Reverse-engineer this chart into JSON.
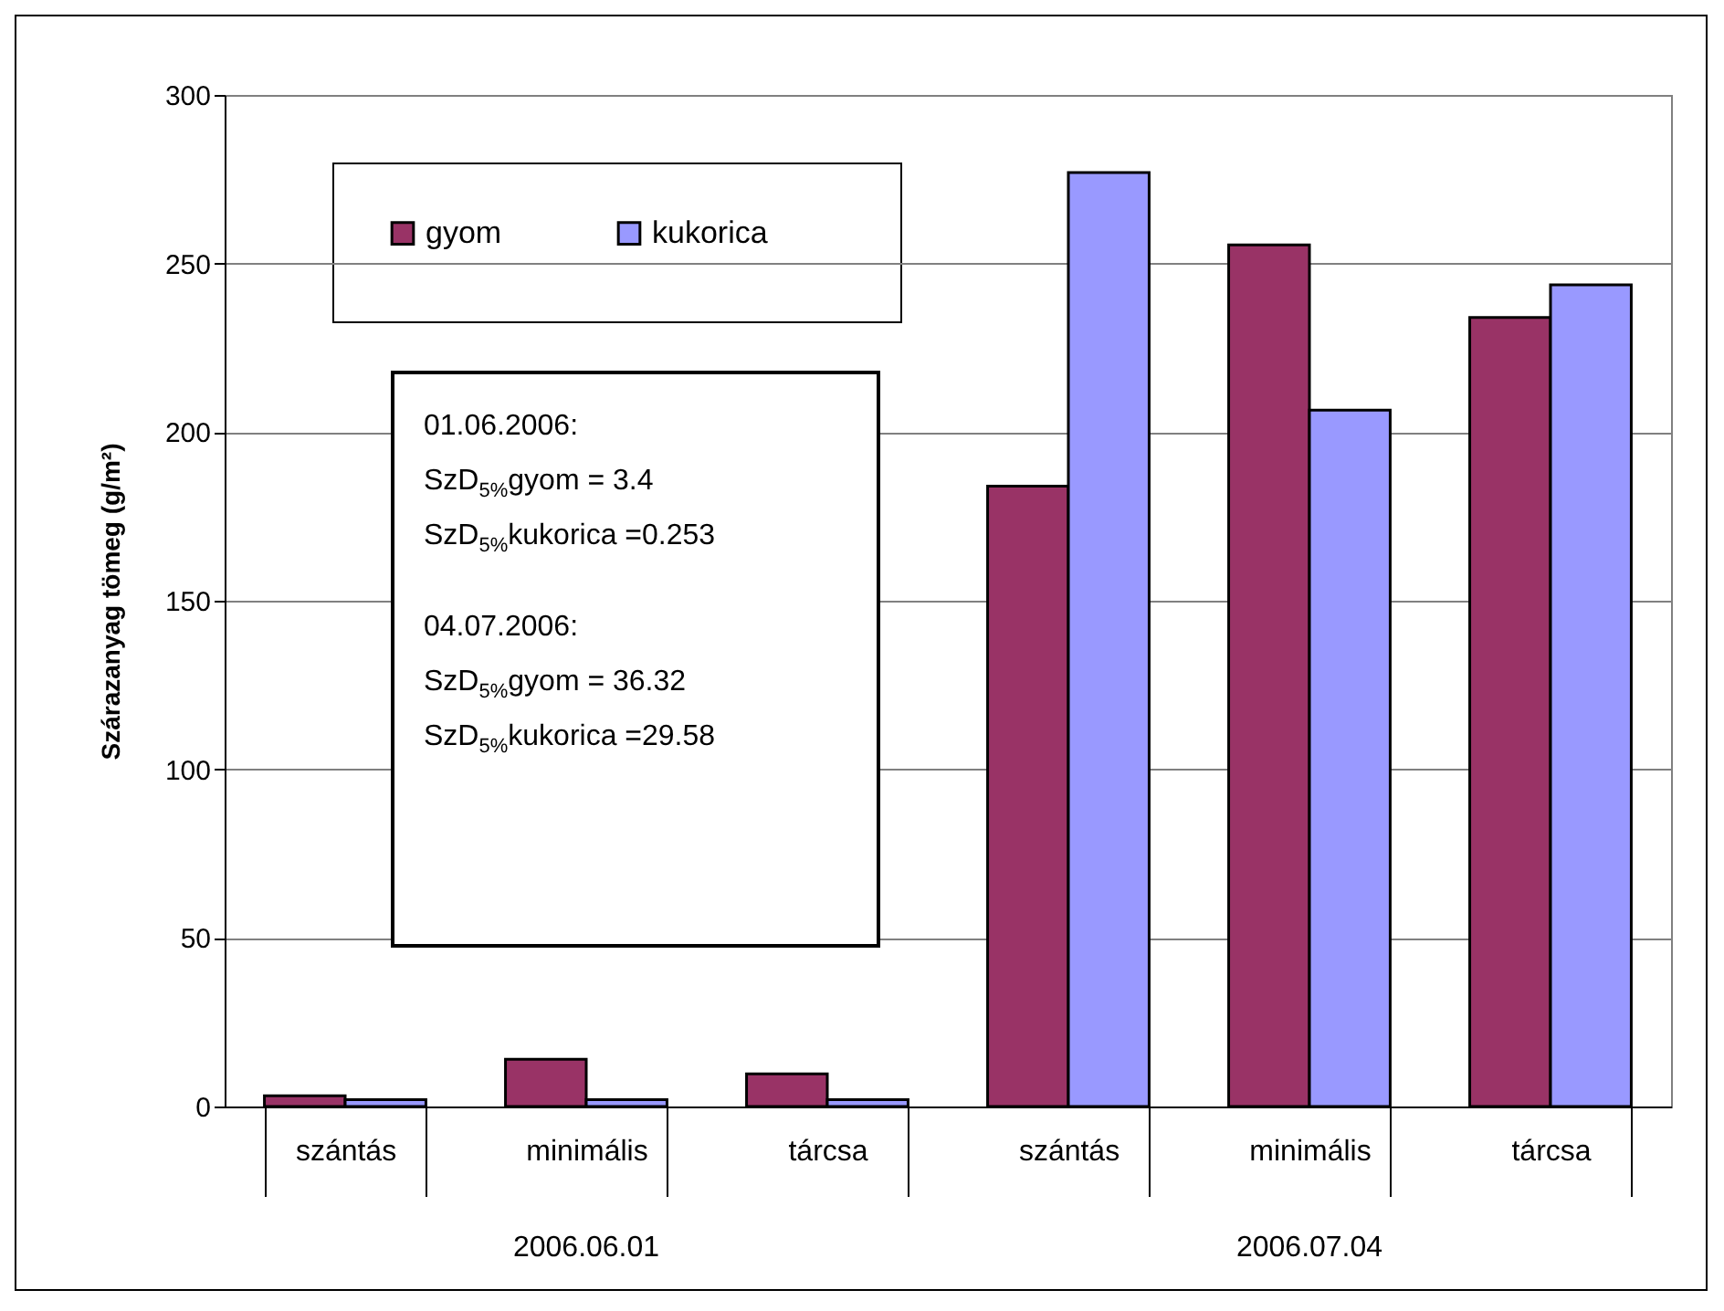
{
  "chart_data": {
    "type": "bar",
    "ylabel": "Szárazanyag tömeg (g/m²)",
    "categories": [
      "szántás",
      "minimális",
      "tárcsa",
      "szántás",
      "minimális",
      "tárcsa"
    ],
    "series": [
      {
        "name": "gyom",
        "color": "#993366",
        "values": [
          3.2,
          14,
          9.7,
          184,
          255.5,
          234
        ]
      },
      {
        "name": "kukorica",
        "color": "#9999ff",
        "values": [
          2,
          2,
          2,
          277,
          206.5,
          243.7
        ]
      }
    ],
    "ylim": [
      0,
      300
    ],
    "yticks": [
      0,
      50,
      100,
      150,
      200,
      250,
      300
    ],
    "grid": "y",
    "legend": "top left",
    "annotations": [
      "2006.06.01",
      "2006.07.04",
      "01.06.2006:",
      "SzD$_{5%}$gyom = 3.4",
      "SzD$_{5%}$kukorica =0.253",
      "04.07.2006:",
      "SzD$_{5%}$gyom = 36.32",
      "SzD$_{5%}$kukorica =29.58"
    ]
  }
}
